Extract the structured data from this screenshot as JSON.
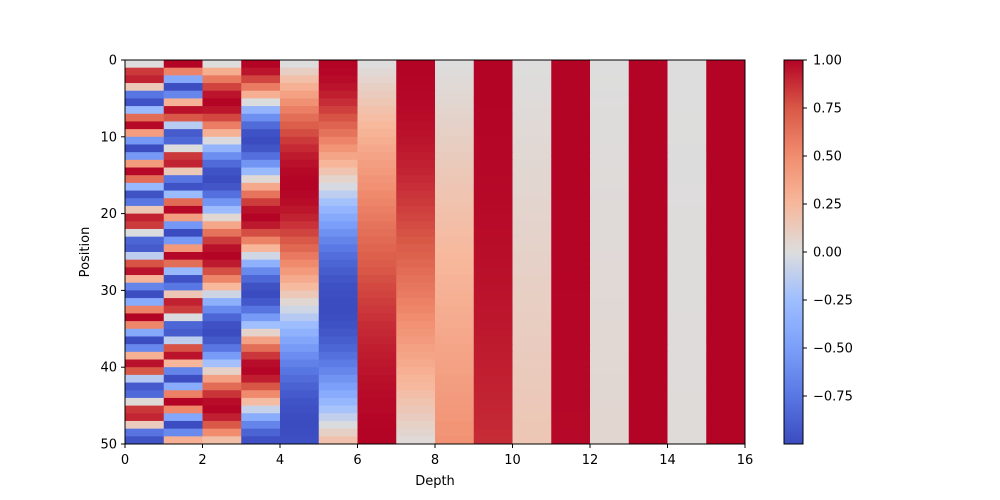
{
  "chart_data": {
    "type": "heatmap",
    "xlabel": "Depth",
    "ylabel": "Position",
    "xlim": [
      0,
      16
    ],
    "ylim": [
      50,
      0
    ],
    "x_ticks": [
      0,
      2,
      4,
      6,
      8,
      10,
      12,
      14,
      16
    ],
    "y_ticks": [
      0,
      10,
      20,
      30,
      40,
      50
    ],
    "n_positions": 50,
    "n_depths": 16,
    "colormap": "coolwarm",
    "colorbar": {
      "range": [
        -1.0,
        1.0
      ],
      "ticks": [
        "1.00",
        "0.75",
        "0.50",
        "0.25",
        "0.00",
        "−0.25",
        "−0.50",
        "−0.75"
      ],
      "tick_values": [
        1.0,
        0.75,
        0.5,
        0.25,
        0.0,
        -0.25,
        -0.5,
        -0.75
      ]
    },
    "cell_rule": "value(position p, depth column d) = sin(p / 10000^(d/16)) for even d, cos(p / 10000^((d-1)/16)) for odd d"
  }
}
